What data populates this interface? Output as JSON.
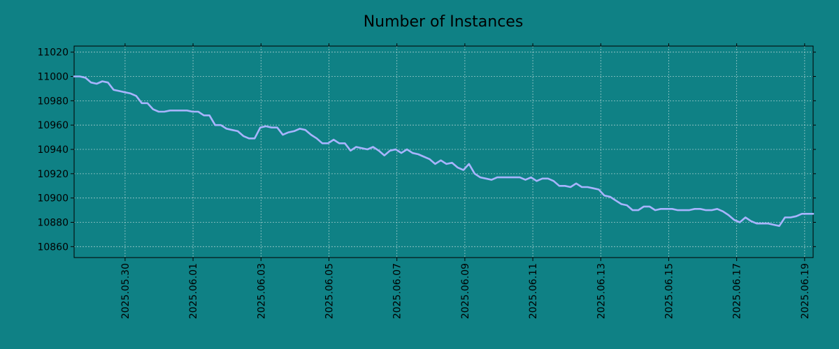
{
  "chart_data": {
    "type": "line",
    "title": "Number of Instances",
    "xlabel": "",
    "ylabel": "",
    "x_start": "2025-05-28 12:00",
    "x_end": "2025-06-19 06:00",
    "xlim": [
      "2025-05-28 12:00",
      "2025-06-19 06:00"
    ],
    "x_ticks": [
      "2025.05.30",
      "2025.06.01",
      "2025.06.03",
      "2025.06.05",
      "2025.06.07",
      "2025.06.09",
      "2025.06.11",
      "2025.06.13",
      "2025.06.15",
      "2025.06.17",
      "2025.06.19"
    ],
    "y_ticks": [
      10860,
      10880,
      10900,
      10920,
      10940,
      10960,
      10980,
      11000,
      11020
    ],
    "ylim": [
      10851,
      11025
    ],
    "grid": true,
    "colors": {
      "line": "#a8b4ff",
      "background": "#0f8185"
    },
    "series": [
      {
        "values": [
          11000,
          11000,
          10999,
          10995,
          10994,
          10996,
          10995,
          10989,
          10988,
          10987,
          10986,
          10984,
          10978,
          10978,
          10973,
          10971,
          10971,
          10972,
          10972,
          10972,
          10972,
          10971,
          10971,
          10968,
          10968,
          10960,
          10960,
          10957,
          10956,
          10955,
          10951,
          10949,
          10949,
          10958,
          10959,
          10958,
          10958,
          10952,
          10954,
          10955,
          10957,
          10956,
          10952,
          10949,
          10945,
          10945,
          10948,
          10945,
          10945,
          10939,
          10942,
          10941,
          10940,
          10942,
          10939,
          10935,
          10939,
          10940,
          10937,
          10940,
          10937,
          10936,
          10934,
          10932,
          10928,
          10931,
          10928,
          10929,
          10925,
          10923,
          10928,
          10920,
          10917,
          10916,
          10915,
          10917,
          10917,
          10917,
          10917,
          10917,
          10915,
          10917,
          10914,
          10916,
          10916,
          10914,
          10910,
          10910,
          10909,
          10912,
          10909,
          10909,
          10908,
          10907,
          10902,
          10901,
          10898,
          10895,
          10894,
          10890,
          10890,
          10893,
          10893,
          10890,
          10891,
          10891,
          10891,
          10890,
          10890,
          10890,
          10891,
          10891,
          10890,
          10890,
          10891,
          10889,
          10886,
          10882,
          10880,
          10884,
          10881,
          10879,
          10879,
          10879,
          10878,
          10877,
          10884,
          10884,
          10885,
          10887,
          10887,
          10887
        ]
      }
    ]
  }
}
